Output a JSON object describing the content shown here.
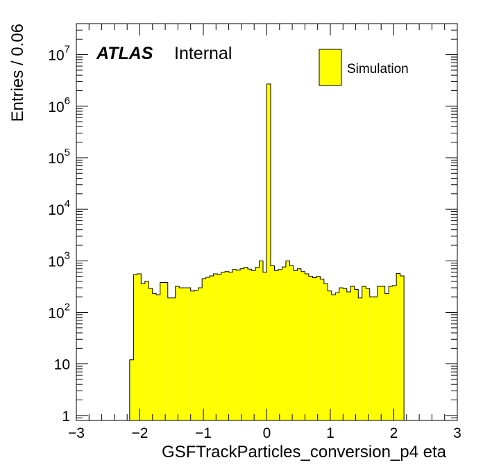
{
  "chart_data": {
    "type": "bar",
    "style": "histogram",
    "xlabel": "GSFTrackParticles_conversion_p4 eta",
    "ylabel": "Entries / 0.06",
    "xlim": [
      -3,
      3
    ],
    "ylim": [
      0.8,
      40000000
    ],
    "log_y": true,
    "grid": false,
    "legend_position": "top-right",
    "legend": [
      {
        "name": "Simulation",
        "color": "#ffff00"
      }
    ],
    "label_bold": "ATLAS",
    "label_text": "Internal",
    "x_ticks": [
      "−3",
      "−2",
      "−1",
      "0",
      "1",
      "2",
      "3"
    ],
    "y_ticks": [
      {
        "base": "1",
        "exp": ""
      },
      {
        "base": "10",
        "exp": ""
      },
      {
        "base": "10",
        "exp": "2"
      },
      {
        "base": "10",
        "exp": "3"
      },
      {
        "base": "10",
        "exp": "4"
      },
      {
        "base": "10",
        "exp": "5"
      },
      {
        "base": "10",
        "exp": "6"
      },
      {
        "base": "10",
        "exp": "7"
      }
    ],
    "bin_width": 0.06,
    "bins": [
      {
        "x0": -2.16,
        "v": 12
      },
      {
        "x0": -2.1,
        "v": 540
      },
      {
        "x0": -2.04,
        "v": 560
      },
      {
        "x0": -1.98,
        "v": 360
      },
      {
        "x0": -1.92,
        "v": 400
      },
      {
        "x0": -1.86,
        "v": 290
      },
      {
        "x0": -1.8,
        "v": 230
      },
      {
        "x0": -1.74,
        "v": 220
      },
      {
        "x0": -1.68,
        "v": 380
      },
      {
        "x0": -1.62,
        "v": 380
      },
      {
        "x0": -1.56,
        "v": 190
      },
      {
        "x0": -1.5,
        "v": 190
      },
      {
        "x0": -1.44,
        "v": 320
      },
      {
        "x0": -1.38,
        "v": 300
      },
      {
        "x0": -1.32,
        "v": 300
      },
      {
        "x0": -1.26,
        "v": 300
      },
      {
        "x0": -1.2,
        "v": 260
      },
      {
        "x0": -1.14,
        "v": 270
      },
      {
        "x0": -1.08,
        "v": 300
      },
      {
        "x0": -1.02,
        "v": 450
      },
      {
        "x0": -0.96,
        "v": 480
      },
      {
        "x0": -0.9,
        "v": 510
      },
      {
        "x0": -0.84,
        "v": 560
      },
      {
        "x0": -0.78,
        "v": 540
      },
      {
        "x0": -0.72,
        "v": 600
      },
      {
        "x0": -0.66,
        "v": 620
      },
      {
        "x0": -0.6,
        "v": 600
      },
      {
        "x0": -0.54,
        "v": 680
      },
      {
        "x0": -0.48,
        "v": 660
      },
      {
        "x0": -0.42,
        "v": 700
      },
      {
        "x0": -0.36,
        "v": 750
      },
      {
        "x0": -0.3,
        "v": 690
      },
      {
        "x0": -0.24,
        "v": 650
      },
      {
        "x0": -0.18,
        "v": 750
      },
      {
        "x0": -0.12,
        "v": 1000
      },
      {
        "x0": -0.06,
        "v": 600
      },
      {
        "x0": 0.0,
        "v": 2700000
      },
      {
        "x0": 0.06,
        "v": 800
      },
      {
        "x0": 0.12,
        "v": 650
      },
      {
        "x0": 0.18,
        "v": 680
      },
      {
        "x0": 0.24,
        "v": 760
      },
      {
        "x0": 0.3,
        "v": 1000
      },
      {
        "x0": 0.36,
        "v": 800
      },
      {
        "x0": 0.42,
        "v": 650
      },
      {
        "x0": 0.48,
        "v": 700
      },
      {
        "x0": 0.54,
        "v": 620
      },
      {
        "x0": 0.6,
        "v": 560
      },
      {
        "x0": 0.66,
        "v": 500
      },
      {
        "x0": 0.72,
        "v": 470
      },
      {
        "x0": 0.78,
        "v": 500
      },
      {
        "x0": 0.84,
        "v": 440
      },
      {
        "x0": 0.9,
        "v": 360
      },
      {
        "x0": 0.96,
        "v": 260
      },
      {
        "x0": 1.02,
        "v": 220
      },
      {
        "x0": 1.08,
        "v": 240
      },
      {
        "x0": 1.14,
        "v": 300
      },
      {
        "x0": 1.2,
        "v": 290
      },
      {
        "x0": 1.26,
        "v": 250
      },
      {
        "x0": 1.32,
        "v": 320
      },
      {
        "x0": 1.38,
        "v": 280
      },
      {
        "x0": 1.44,
        "v": 190
      },
      {
        "x0": 1.5,
        "v": 320
      },
      {
        "x0": 1.56,
        "v": 290
      },
      {
        "x0": 1.62,
        "v": 200
      },
      {
        "x0": 1.68,
        "v": 200
      },
      {
        "x0": 1.74,
        "v": 320
      },
      {
        "x0": 1.8,
        "v": 320
      },
      {
        "x0": 1.86,
        "v": 230
      },
      {
        "x0": 1.92,
        "v": 320
      },
      {
        "x0": 1.98,
        "v": 330
      },
      {
        "x0": 2.04,
        "v": 570
      },
      {
        "x0": 2.1,
        "v": 510
      },
      {
        "x0": 2.16,
        "v": 0
      }
    ]
  }
}
